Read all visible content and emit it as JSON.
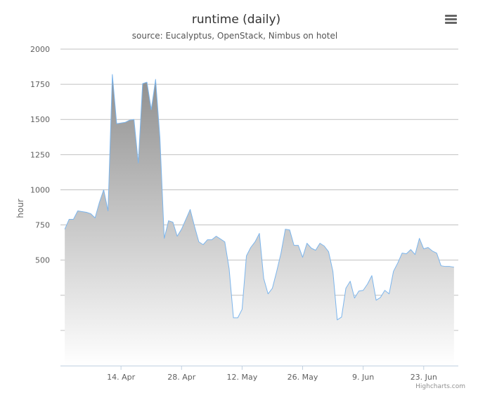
{
  "chart_data": {
    "type": "area",
    "title": "runtime (daily)",
    "subtitle": "source: Eucalyptus, OpenStack, Nimbus on hotel",
    "ylabel": "hour",
    "xlabel": "",
    "credits": "Highcharts.com",
    "ylim": [
      -250,
      2000
    ],
    "yticks": [
      2000,
      1750,
      1500,
      1250,
      1000,
      750,
      500
    ],
    "xlim": [
      "2014-03-31",
      "2014-07-01"
    ],
    "xticks": [
      {
        "date": "2014-04-14",
        "label": "14. Apr"
      },
      {
        "date": "2014-04-28",
        "label": "28. Apr"
      },
      {
        "date": "2014-05-12",
        "label": "12. May"
      },
      {
        "date": "2014-05-26",
        "label": "26. May"
      },
      {
        "date": "2014-06-09",
        "label": "9. Jun"
      },
      {
        "date": "2014-06-23",
        "label": "23. Jun"
      }
    ],
    "grid": true,
    "legend": "none",
    "colors": {
      "line": "#7cb5ec",
      "fill_top": "#8e8e8e",
      "fill_bottom": "#ffffff",
      "grid": "#c0c0c0",
      "axis": "#c0d0e0"
    },
    "series": [
      {
        "x": [
          "2014-04-01",
          "2014-04-02",
          "2014-04-03",
          "2014-04-04",
          "2014-04-05",
          "2014-04-06",
          "2014-04-07",
          "2014-04-08",
          "2014-04-09",
          "2014-04-10",
          "2014-04-11",
          "2014-04-12",
          "2014-04-13",
          "2014-04-14",
          "2014-04-15",
          "2014-04-16",
          "2014-04-17",
          "2014-04-18",
          "2014-04-19",
          "2014-04-20",
          "2014-04-21",
          "2014-04-22",
          "2014-04-23",
          "2014-04-24",
          "2014-04-25",
          "2014-04-26",
          "2014-04-27",
          "2014-04-28",
          "2014-04-29",
          "2014-04-30",
          "2014-05-01",
          "2014-05-02",
          "2014-05-03",
          "2014-05-04",
          "2014-05-05",
          "2014-05-06",
          "2014-05-07",
          "2014-05-08",
          "2014-05-09",
          "2014-05-10",
          "2014-05-11",
          "2014-05-12",
          "2014-05-13",
          "2014-05-14",
          "2014-05-15",
          "2014-05-16",
          "2014-05-17",
          "2014-05-18",
          "2014-05-19",
          "2014-05-20",
          "2014-05-21",
          "2014-05-22",
          "2014-05-23",
          "2014-05-24",
          "2014-05-25",
          "2014-05-26",
          "2014-05-27",
          "2014-05-28",
          "2014-05-29",
          "2014-05-30",
          "2014-05-31",
          "2014-06-01",
          "2014-06-02",
          "2014-06-03",
          "2014-06-04",
          "2014-06-05",
          "2014-06-06",
          "2014-06-07",
          "2014-06-08",
          "2014-06-09",
          "2014-06-10",
          "2014-06-11",
          "2014-06-12",
          "2014-06-13",
          "2014-06-14",
          "2014-06-15",
          "2014-06-16",
          "2014-06-17",
          "2014-06-18",
          "2014-06-19",
          "2014-06-20",
          "2014-06-21",
          "2014-06-22",
          "2014-06-23",
          "2014-06-24",
          "2014-06-25",
          "2014-06-26",
          "2014-06-27",
          "2014-06-28",
          "2014-06-29",
          "2014-06-30"
        ],
        "y": [
          720,
          790,
          790,
          850,
          845,
          840,
          830,
          800,
          910,
          1000,
          850,
          1820,
          1470,
          1475,
          1480,
          1495,
          1500,
          1190,
          1755,
          1765,
          1570,
          1785,
          1370,
          655,
          780,
          770,
          670,
          720,
          790,
          860,
          740,
          630,
          610,
          645,
          645,
          670,
          650,
          630,
          440,
          90,
          90,
          150,
          530,
          590,
          630,
          690,
          370,
          260,
          300,
          420,
          550,
          720,
          715,
          605,
          605,
          520,
          620,
          585,
          570,
          620,
          600,
          560,
          420,
          75,
          95,
          300,
          350,
          230,
          280,
          285,
          330,
          390,
          215,
          235,
          285,
          260,
          420,
          480,
          550,
          545,
          575,
          540,
          655,
          580,
          590,
          565,
          550,
          460,
          455,
          455,
          450
        ]
      }
    ]
  }
}
